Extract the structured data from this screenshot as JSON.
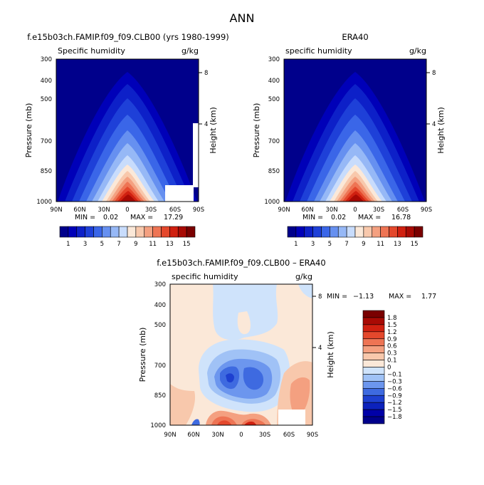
{
  "page_title": "ANN",
  "chart_data": [
    {
      "type": "contour",
      "title": "f.e15b03ch.FAMIP.f09_f09.CLB00 (yrs 1980-1999)",
      "subtitle_left": "Specific humidity",
      "units": "g/kg",
      "ylabel": "Pressure (mb)",
      "y2label": "Height (km)",
      "x_ticks": [
        "90N",
        "60N",
        "30N",
        "0",
        "30S",
        "60S",
        "90S"
      ],
      "y_ticks": [
        "300",
        "400",
        "500",
        "700",
        "850",
        "1000"
      ],
      "y2_ticks": [
        "8",
        "4"
      ],
      "min_label": "MIN =",
      "min_value": "0.02",
      "max_label": "MAX =",
      "max_value": "17.29"
    },
    {
      "type": "contour",
      "title": "ERA40",
      "subtitle_left": "specific humidity",
      "units": "g/kg",
      "ylabel": "Pressure (mb)",
      "y2label": "Height (km)",
      "x_ticks": [
        "90N",
        "60N",
        "30N",
        "0",
        "30S",
        "60S",
        "90S"
      ],
      "y_ticks": [
        "300",
        "400",
        "500",
        "700",
        "850",
        "1000"
      ],
      "y2_ticks": [
        "8",
        "4"
      ],
      "min_label": "MIN =",
      "min_value": "0.02",
      "max_label": "MAX =",
      "max_value": "16.78"
    },
    {
      "type": "contour",
      "title": "f.e15b03ch.FAMIP.f09_f09.CLB00 – ERA40",
      "subtitle_left": "specific humidity",
      "units": "g/kg",
      "ylabel": "Pressure (mb)",
      "y2label": "Height (km)",
      "x_ticks": [
        "90N",
        "60N",
        "30N",
        "0",
        "30S",
        "60S",
        "90S"
      ],
      "y_ticks": [
        "300",
        "400",
        "500",
        "700",
        "850",
        "1000"
      ],
      "y2_ticks": [
        "8",
        "4"
      ],
      "min_label": "MIN =",
      "min_value": "−1.13",
      "max_label": "MAX =",
      "max_value": "1.77"
    }
  ],
  "colorbar_top": {
    "labels": [
      "1",
      "3",
      "5",
      "7",
      "9",
      "11",
      "13",
      "15"
    ],
    "colors": [
      "#00008b",
      "#0000b8",
      "#0d20c8",
      "#1e40d8",
      "#3a66e8",
      "#6690f0",
      "#96b8f6",
      "#c8dcfc",
      "#fbe8d8",
      "#f8c8ac",
      "#f4a080",
      "#ee7454",
      "#e4482c",
      "#d02010",
      "#a80a04",
      "#7a0000"
    ]
  },
  "colorbar_diff": {
    "labels": [
      "1.8",
      "1.5",
      "1.2",
      "0.9",
      "0.6",
      "0.3",
      "0.1",
      "0",
      "−0.1",
      "−0.3",
      "−0.6",
      "−0.9",
      "−1.2",
      "−1.5",
      "−1.8"
    ],
    "colors": [
      "#7a0000",
      "#a80a04",
      "#d02010",
      "#e4482c",
      "#ee7454",
      "#f4a080",
      "#f8c8ac",
      "#fbe8d8",
      "#cfe3fb",
      "#a0c2f6",
      "#6c96ee",
      "#3e6ae0",
      "#1e40d0",
      "#0c22bc",
      "#0000a8",
      "#00008b"
    ]
  }
}
